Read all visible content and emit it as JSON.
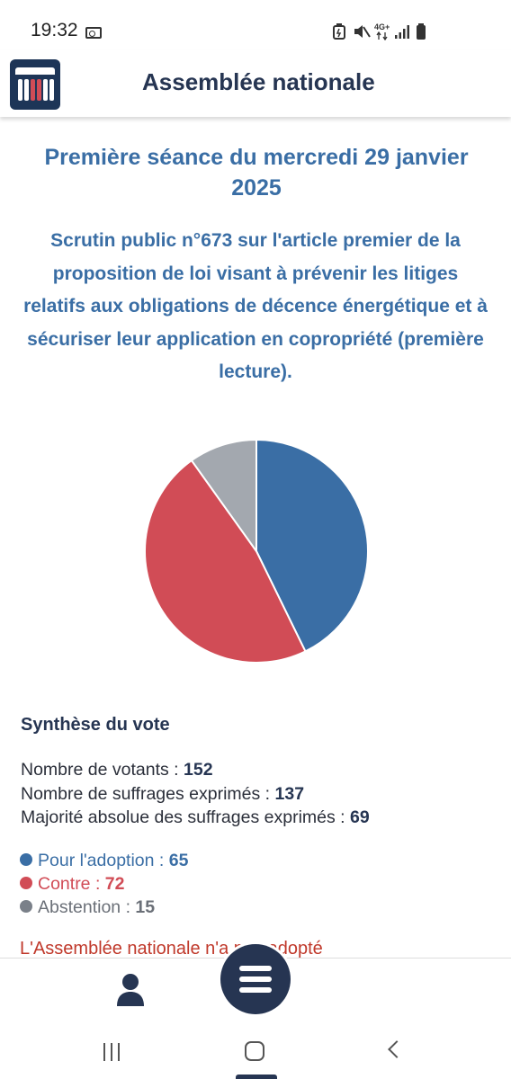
{
  "status_bar": {
    "time": "19:32",
    "network": "4G+"
  },
  "header": {
    "title": "Assemblée nationale"
  },
  "seance": {
    "title": "Première séance du mercredi 29 janvier 2025"
  },
  "scrutin": {
    "description": "Scrutin public n°673 sur l'article premier de la proposition de loi visant à prévenir les litiges relatifs aux obligations de décence énergétique et à sécuriser leur application en copropriété (première lecture)."
  },
  "chart_data": {
    "type": "pie",
    "slices": [
      {
        "label": "Pour l'adoption",
        "value": 65,
        "color": "#3a6ea5"
      },
      {
        "label": "Contre",
        "value": 72,
        "color": "#d14c56"
      },
      {
        "label": "Abstention",
        "value": 15,
        "color": "#a3a8af"
      }
    ]
  },
  "synthese": {
    "title": "Synthèse du vote",
    "votants_label": "Nombre de votants : ",
    "votants_value": "152",
    "exprimes_label": "Nombre de suffrages exprimés : ",
    "exprimes_value": "137",
    "majorite_label": "Majorité absolue des suffrages exprimés : ",
    "majorite_value": "69"
  },
  "legend": {
    "pour_label": "Pour l'adoption : ",
    "pour_value": "65",
    "contre_label": "Contre : ",
    "contre_value": "72",
    "abstention_label": "Abstention : ",
    "abstention_value": "15"
  },
  "result": {
    "text": "L'Assemblée nationale n'a pas adopté"
  },
  "colors": {
    "pour": "#3a6ea5",
    "contre": "#d14c56",
    "abstention": "#7a8089",
    "navy": "#263552"
  }
}
